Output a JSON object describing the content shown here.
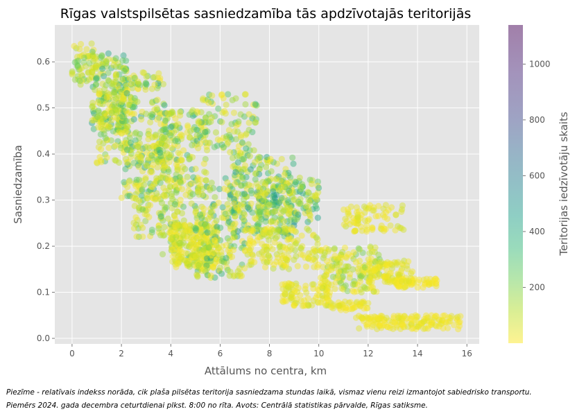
{
  "chart_data": {
    "type": "scatter",
    "title": "Rīgas valstspilsētas sasniedzamība tās apdzīvotajās teritorijās",
    "xlabel": "Attālums no centra, km",
    "ylabel": "Sasniedzamība",
    "xlim": [
      -0.7,
      16.5
    ],
    "ylim": [
      -0.012,
      0.68
    ],
    "xticks": [
      0,
      2,
      4,
      6,
      8,
      10,
      12,
      14,
      16
    ],
    "yticks": [
      0.0,
      0.1,
      0.2,
      0.3,
      0.4,
      0.5,
      0.6
    ],
    "grid": true,
    "colorbar": {
      "label": "Teritorijas iedzīvotāju skaits",
      "min": 0,
      "max": 1140,
      "ticks": [
        200,
        400,
        600,
        800,
        1000
      ],
      "colormap": "viridis_r",
      "alpha": 0.5
    },
    "colors": {
      "background": "#e5e5e5",
      "grid": "#ffffff",
      "text": "#555555"
    },
    "clusters": [
      {
        "x_range": [
          0.0,
          1.0
        ],
        "y_range": [
          0.55,
          0.64
        ],
        "count": 60,
        "pop_range": [
          20,
          300
        ]
      },
      {
        "x_range": [
          0.8,
          2.2
        ],
        "y_range": [
          0.45,
          0.62
        ],
        "count": 160,
        "pop_range": [
          50,
          500
        ]
      },
      {
        "x_range": [
          1.0,
          2.5
        ],
        "y_range": [
          0.38,
          0.55
        ],
        "count": 120,
        "pop_range": [
          20,
          350
        ]
      },
      {
        "x_range": [
          2.0,
          3.8
        ],
        "y_range": [
          0.3,
          0.58
        ],
        "count": 200,
        "pop_range": [
          20,
          500
        ]
      },
      {
        "x_range": [
          2.5,
          4.5
        ],
        "y_range": [
          0.22,
          0.45
        ],
        "count": 180,
        "pop_range": [
          20,
          300
        ]
      },
      {
        "x_range": [
          3.5,
          5.5
        ],
        "y_range": [
          0.16,
          0.5
        ],
        "count": 220,
        "pop_range": [
          20,
          450
        ]
      },
      {
        "x_range": [
          4.0,
          6.0
        ],
        "y_range": [
          0.15,
          0.25
        ],
        "count": 200,
        "pop_range": [
          10,
          150
        ]
      },
      {
        "x_range": [
          5.0,
          7.5
        ],
        "y_range": [
          0.4,
          0.53
        ],
        "count": 100,
        "pop_range": [
          20,
          400
        ]
      },
      {
        "x_range": [
          5.0,
          7.0
        ],
        "y_range": [
          0.13,
          0.35
        ],
        "count": 200,
        "pop_range": [
          20,
          500
        ]
      },
      {
        "x_range": [
          6.5,
          9.0
        ],
        "y_range": [
          0.22,
          0.4
        ],
        "count": 200,
        "pop_range": [
          20,
          550
        ]
      },
      {
        "x_range": [
          7.5,
          10.0
        ],
        "y_range": [
          0.25,
          0.35
        ],
        "count": 150,
        "pop_range": [
          50,
          550
        ]
      },
      {
        "x_range": [
          7.0,
          10.0
        ],
        "y_range": [
          0.15,
          0.24
        ],
        "count": 150,
        "pop_range": [
          10,
          150
        ]
      },
      {
        "x_range": [
          8.5,
          10.5
        ],
        "y_range": [
          0.07,
          0.12
        ],
        "count": 90,
        "pop_range": [
          10,
          100
        ]
      },
      {
        "x_range": [
          10.0,
          12.5
        ],
        "y_range": [
          0.1,
          0.2
        ],
        "count": 160,
        "pop_range": [
          10,
          250
        ]
      },
      {
        "x_range": [
          11.0,
          13.5
        ],
        "y_range": [
          0.23,
          0.29
        ],
        "count": 80,
        "pop_range": [
          10,
          100
        ]
      },
      {
        "x_range": [
          12.0,
          13.8
        ],
        "y_range": [
          0.12,
          0.17
        ],
        "count": 80,
        "pop_range": [
          10,
          100
        ]
      },
      {
        "x_range": [
          13.0,
          14.8
        ],
        "y_range": [
          0.11,
          0.13
        ],
        "count": 60,
        "pop_range": [
          5,
          60
        ]
      },
      {
        "x_range": [
          11.5,
          15.8
        ],
        "y_range": [
          0.02,
          0.05
        ],
        "count": 150,
        "pop_range": [
          5,
          60
        ]
      },
      {
        "x_range": [
          10.5,
          12.0
        ],
        "y_range": [
          0.06,
          0.08
        ],
        "count": 40,
        "pop_range": [
          5,
          60
        ]
      }
    ]
  },
  "footnote": {
    "line1": "Piezīme - relatīvais indekss norāda, cik plaša pilsētas teritorija sasniedzama stundas laikā, vismaz vienu reizi izmantojot sabiedrisko transportu.",
    "line2": "Piemērs 2024. gada decembra ceturtdienai plkst. 8:00 no rīta. Avots: Centrālā statistikas pārvalde, Rīgas satiksme."
  }
}
